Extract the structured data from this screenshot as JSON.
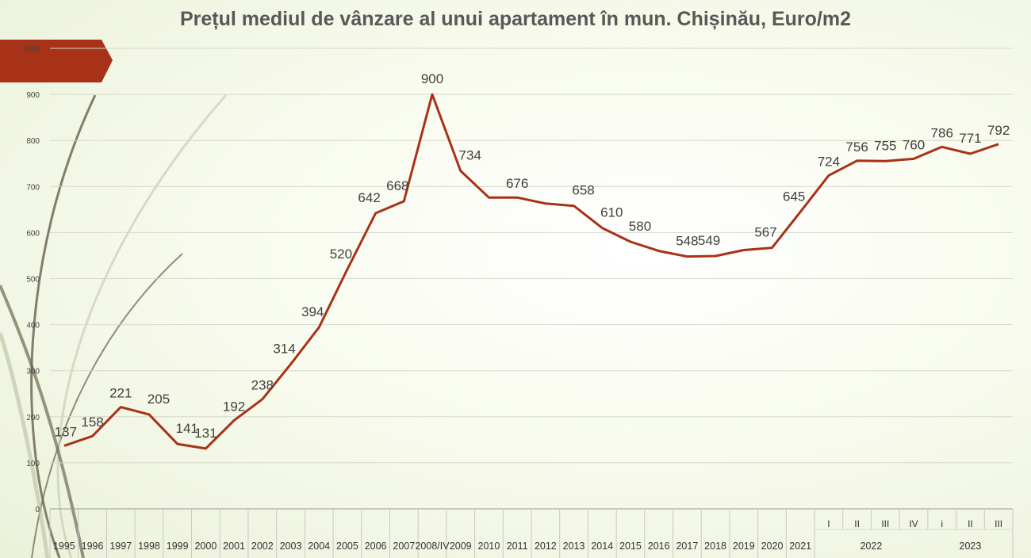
{
  "chart_data": {
    "type": "line",
    "title": "Prețul mediul de vânzare al unui apartament în mun. Chișinău, Euro/m2",
    "ylim": [
      0,
      1000
    ],
    "yticks": [
      0,
      100,
      200,
      300,
      400,
      500,
      600,
      700,
      800,
      900,
      1000
    ],
    "grid": true,
    "legend": "none",
    "line_color": "#a83218",
    "categories": [
      "1995",
      "1996",
      "1997",
      "1998",
      "1999",
      "2000",
      "2001",
      "2002",
      "2003",
      "2004",
      "2005",
      "2006",
      "2007",
      "2008/IV",
      "2009",
      "2010",
      "2011",
      "2012",
      "2013",
      "2014",
      "2015",
      "2016",
      "2017",
      "2018",
      "2019",
      "2020",
      "2021",
      "I",
      "II",
      "III",
      "IV",
      "i",
      "II",
      "III"
    ],
    "group_labels": [
      {
        "label": "2022",
        "start": 27,
        "end": 30
      },
      {
        "label": "2023",
        "start": 31,
        "end": 33
      }
    ],
    "values": [
      137,
      158,
      221,
      205,
      141,
      131,
      192,
      238,
      314,
      394,
      520,
      642,
      668,
      900,
      734,
      676,
      676,
      663,
      658,
      610,
      580,
      560,
      548,
      549,
      562,
      567,
      645,
      724,
      756,
      755,
      760,
      786,
      771,
      792
    ],
    "data_labels": [
      "137",
      "158",
      "221",
      "205",
      "141",
      "131",
      "192",
      "238",
      "314",
      "394",
      "520",
      "642",
      "668",
      "900",
      "734",
      "",
      "676",
      "",
      "658",
      "610",
      "580",
      "",
      "548",
      "549",
      "",
      "567",
      "645",
      "724",
      "756",
      "755",
      "760",
      "786",
      "771",
      "792"
    ]
  }
}
